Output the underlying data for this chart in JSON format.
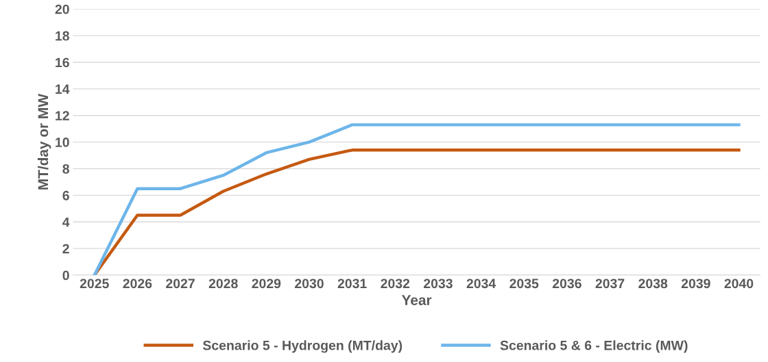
{
  "chart_data": {
    "type": "line",
    "xlabel": "Year",
    "ylabel": "MT/day or MW",
    "categories": [
      "2025",
      "2026",
      "2027",
      "2028",
      "2029",
      "2030",
      "2031",
      "2032",
      "2033",
      "2034",
      "2035",
      "2036",
      "2037",
      "2038",
      "2039",
      "2040"
    ],
    "series": [
      {
        "name": "Scenario 5 - Hydrogen (MT/day)",
        "color": "#c55a11",
        "values": [
          0,
          4.5,
          4.5,
          6.3,
          7.6,
          8.7,
          9.4,
          9.4,
          9.4,
          9.4,
          9.4,
          9.4,
          9.4,
          9.4,
          9.4,
          9.4
        ]
      },
      {
        "name": "Scenario 5 & 6 - Electric (MW)",
        "color": "#6db5ea",
        "values": [
          0,
          6.5,
          6.5,
          7.5,
          9.2,
          10.0,
          11.3,
          11.3,
          11.3,
          11.3,
          11.3,
          11.3,
          11.3,
          11.3,
          11.3,
          11.3
        ]
      }
    ],
    "ylim": [
      0,
      20
    ],
    "yticks": [
      0,
      2,
      4,
      6,
      8,
      10,
      12,
      14,
      16,
      18,
      20
    ],
    "grid": "y",
    "legend": "bottom",
    "marker": "none",
    "line_style": "solid"
  }
}
